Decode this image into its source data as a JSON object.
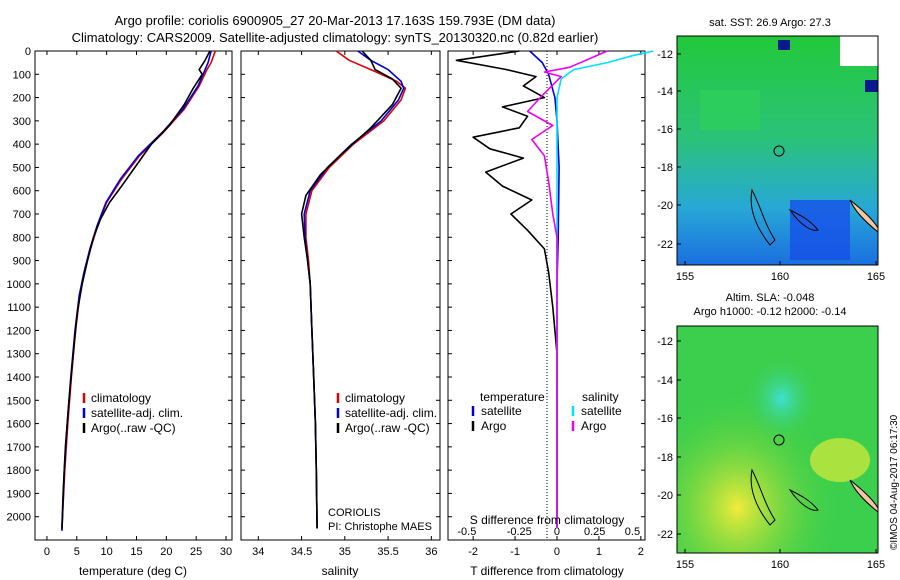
{
  "header": {
    "line1": "Argo profile: coriolis 6900905_27 20-Mar-2013 17.163S 159.793E (DM data)",
    "line2": "Climatology: CARS2009. Satellite-adjusted climatology: synTS_20130320.nc (0.82d earlier)"
  },
  "side_stamp": "©IMOS 04-Aug-2017 06:17:30",
  "panels": {
    "temperature": {
      "xlabel": "temperature (deg C)",
      "legend": [
        "climatology",
        "satellite-adj. clim.",
        "Argo(..raw -QC)"
      ]
    },
    "salinity": {
      "xlabel": "salinity",
      "legend": [
        "climatology",
        "satellite-adj. clim.",
        "Argo(..raw -QC)"
      ],
      "note1": "CORIOLIS",
      "note2": "PI: Christophe MAES"
    },
    "difference": {
      "top_label": "S difference from climatology",
      "xlabel": "T difference from climatology",
      "legend_temp_title": "temperature",
      "legend_sal_title": "salinity",
      "legend_items": [
        "satellite",
        "Argo",
        "satellite",
        "Argo"
      ]
    }
  },
  "maps": {
    "sst_title": "sat. SST: 26.9 Argo: 27.3",
    "sla_title1": "Altim. SLA: -0.048",
    "sla_title2": "Argo h1000: -0.12 h2000: -0.14",
    "x_ticks": [
      "155",
      "160",
      "165"
    ],
    "y_ticks": [
      "-12",
      "-14",
      "-16",
      "-18",
      "-20",
      "-22"
    ]
  },
  "colors": {
    "climatology": "#e00000",
    "satellite": "#0000dd",
    "argo": "#000000",
    "sal_sat": "#00e0ff",
    "sal_argo": "#ee00ee"
  },
  "chart_data": [
    {
      "type": "line",
      "xlabel": "temperature (deg C)",
      "ylabel": "",
      "xlim": [
        -2,
        31
      ],
      "ylim": [
        2100,
        0
      ],
      "x_ticks": [
        0,
        5,
        10,
        15,
        20,
        25,
        30
      ],
      "y_ticks": [
        0,
        100,
        200,
        300,
        400,
        500,
        600,
        700,
        800,
        900,
        1000,
        1100,
        1200,
        1300,
        1400,
        1500,
        1600,
        1700,
        1800,
        1900,
        2000
      ],
      "series": [
        {
          "name": "climatology",
          "color": "#e00000",
          "points": [
            [
              28.2,
              0
            ],
            [
              27.5,
              50
            ],
            [
              26.8,
              80
            ],
            [
              25.5,
              150
            ],
            [
              23,
              250
            ],
            [
              19.5,
              350
            ],
            [
              15.5,
              450
            ],
            [
              12.5,
              550
            ],
            [
              10,
              650
            ],
            [
              8.5,
              750
            ],
            [
              7.3,
              850
            ],
            [
              6.3,
              950
            ],
            [
              5.5,
              1050
            ],
            [
              4.8,
              1200
            ],
            [
              4.1,
              1400
            ],
            [
              3.5,
              1600
            ],
            [
              3,
              1800
            ],
            [
              2.6,
              2000
            ],
            [
              2.5,
              2060
            ]
          ]
        },
        {
          "name": "satellite-adj. clim.",
          "color": "#0000dd",
          "points": [
            [
              27.5,
              0
            ],
            [
              27,
              50
            ],
            [
              26.5,
              80
            ],
            [
              25.3,
              150
            ],
            [
              22.8,
              250
            ],
            [
              19.3,
              350
            ],
            [
              15.3,
              450
            ],
            [
              12.3,
              550
            ],
            [
              9.9,
              650
            ],
            [
              8.4,
              750
            ],
            [
              7.2,
              850
            ],
            [
              6.2,
              950
            ],
            [
              5.4,
              1050
            ],
            [
              4.7,
              1200
            ],
            [
              4,
              1400
            ],
            [
              3.4,
              1600
            ],
            [
              2.9,
              1800
            ],
            [
              2.6,
              2000
            ],
            [
              2.5,
              2060
            ]
          ]
        },
        {
          "name": "Argo(..raw -QC)",
          "color": "#000000",
          "points": [
            [
              27.3,
              0
            ],
            [
              26.5,
              40
            ],
            [
              25.5,
              80
            ],
            [
              26,
              100
            ],
            [
              24.5,
              160
            ],
            [
              23,
              230
            ],
            [
              20.5,
              320
            ],
            [
              17.5,
              400
            ],
            [
              15,
              490
            ],
            [
              12.5,
              580
            ],
            [
              10.5,
              650
            ],
            [
              9,
              720
            ],
            [
              7.8,
              800
            ],
            [
              6.8,
              900
            ],
            [
              5.9,
              1000
            ],
            [
              5.1,
              1120
            ],
            [
              4.4,
              1300
            ],
            [
              3.7,
              1500
            ],
            [
              3.1,
              1700
            ],
            [
              2.7,
              1900
            ],
            [
              2.5,
              2050
            ]
          ]
        }
      ]
    },
    {
      "type": "line",
      "xlabel": "salinity",
      "ylabel": "",
      "xlim": [
        33.8,
        36.1
      ],
      "ylim": [
        2100,
        0
      ],
      "x_ticks": [
        34,
        34.5,
        35,
        35.5,
        36
      ],
      "y_ticks": [
        0,
        100,
        200,
        300,
        400,
        500,
        600,
        700,
        800,
        900,
        1000,
        1100,
        1200,
        1300,
        1400,
        1500,
        1600,
        1700,
        1800,
        1900,
        2000
      ],
      "series": [
        {
          "name": "climatology",
          "color": "#e00000",
          "points": [
            [
              34.9,
              0
            ],
            [
              35.05,
              40
            ],
            [
              35.3,
              80
            ],
            [
              35.6,
              130
            ],
            [
              35.7,
              160
            ],
            [
              35.65,
              210
            ],
            [
              35.45,
              300
            ],
            [
              35.1,
              400
            ],
            [
              34.82,
              500
            ],
            [
              34.62,
              600
            ],
            [
              34.55,
              700
            ],
            [
              34.55,
              800
            ],
            [
              34.58,
              900
            ],
            [
              34.6,
              1000
            ],
            [
              34.62,
              1200
            ],
            [
              34.64,
              1400
            ],
            [
              34.66,
              1600
            ],
            [
              34.67,
              1800
            ],
            [
              34.68,
              2050
            ]
          ]
        },
        {
          "name": "satellite-adj. clim.",
          "color": "#0000dd",
          "points": [
            [
              35.15,
              0
            ],
            [
              35.3,
              40
            ],
            [
              35.5,
              80
            ],
            [
              35.65,
              130
            ],
            [
              35.68,
              160
            ],
            [
              35.62,
              210
            ],
            [
              35.42,
              300
            ],
            [
              35.08,
              400
            ],
            [
              34.8,
              500
            ],
            [
              34.6,
              600
            ],
            [
              34.53,
              700
            ],
            [
              34.54,
              800
            ],
            [
              34.57,
              900
            ],
            [
              34.6,
              1000
            ],
            [
              34.62,
              1200
            ],
            [
              34.64,
              1400
            ],
            [
              34.66,
              1600
            ],
            [
              34.67,
              1800
            ],
            [
              34.68,
              2050
            ]
          ]
        },
        {
          "name": "Argo(..raw -QC)",
          "color": "#000000",
          "points": [
            [
              35.2,
              0
            ],
            [
              35.3,
              40
            ],
            [
              35.35,
              80
            ],
            [
              35.55,
              120
            ],
            [
              35.65,
              160
            ],
            [
              35.55,
              230
            ],
            [
              35.3,
              330
            ],
            [
              35,
              430
            ],
            [
              34.72,
              530
            ],
            [
              34.55,
              620
            ],
            [
              34.5,
              700
            ],
            [
              34.53,
              800
            ],
            [
              34.57,
              900
            ],
            [
              34.6,
              1000
            ],
            [
              34.62,
              1200
            ],
            [
              34.64,
              1400
            ],
            [
              34.66,
              1600
            ],
            [
              34.67,
              1800
            ],
            [
              34.68,
              2050
            ]
          ]
        }
      ]
    },
    {
      "type": "line",
      "xlabel": "T difference from climatology",
      "ylabel": "",
      "xlim": [
        -2.6,
        2.1
      ],
      "ylim": [
        2100,
        0
      ],
      "x_ticks": [
        -2,
        -1,
        0,
        1,
        2
      ],
      "x2_label": "S difference from climatology",
      "x2_ticks": [
        "-0.5",
        "-0.25",
        "0",
        "0.25",
        "0.5"
      ],
      "y_ticks": [
        0,
        100,
        200,
        300,
        400,
        500,
        600,
        700,
        800,
        900,
        1000,
        1100,
        1200,
        1300,
        1400,
        1500,
        1600,
        1700,
        1800,
        1900,
        2000
      ],
      "series": [
        {
          "name": "satellite",
          "color": "#0000dd",
          "points": [
            [
              -0.65,
              0
            ],
            [
              -0.35,
              50
            ],
            [
              -0.2,
              100
            ],
            [
              -0.05,
              200
            ],
            [
              0,
              300
            ],
            [
              0.05,
              500
            ],
            [
              0.03,
              800
            ],
            [
              0,
              1000
            ],
            [
              0,
              2050
            ]
          ]
        },
        {
          "name": "Argo",
          "color": "#000000",
          "points": [
            [
              -0.9,
              0
            ],
            [
              -2.4,
              40
            ],
            [
              -1.2,
              80
            ],
            [
              -0.5,
              110
            ],
            [
              -0.8,
              150
            ],
            [
              -0.3,
              200
            ],
            [
              -1.3,
              240
            ],
            [
              -0.7,
              280
            ],
            [
              -0.9,
              330
            ],
            [
              -2,
              370
            ],
            [
              -1.6,
              420
            ],
            [
              -0.8,
              460
            ],
            [
              -1.7,
              520
            ],
            [
              -1.3,
              580
            ],
            [
              -0.6,
              640
            ],
            [
              -1.1,
              700
            ],
            [
              -0.7,
              770
            ],
            [
              -0.3,
              850
            ],
            [
              -0.2,
              950
            ],
            [
              -0.1,
              1100
            ],
            [
              0,
              1300
            ],
            [
              0,
              2050
            ]
          ]
        },
        {
          "name": "satellite",
          "color": "#00e0ff",
          "points": [
            [
              2.3,
              0
            ],
            [
              1.8,
              20
            ],
            [
              1.2,
              50
            ],
            [
              0.4,
              80
            ],
            [
              0.1,
              120
            ],
            [
              0,
              200
            ],
            [
              0,
              300
            ],
            [
              0,
              1000
            ],
            [
              0,
              2050
            ]
          ]
        },
        {
          "name": "Argo",
          "color": "#ee00ee",
          "points": [
            [
              1.2,
              0
            ],
            [
              0.3,
              70
            ],
            [
              -0.3,
              90
            ],
            [
              0.1,
              110
            ],
            [
              -0.4,
              200
            ],
            [
              -0.7,
              260
            ],
            [
              -0.1,
              320
            ],
            [
              -0.6,
              380
            ],
            [
              -0.3,
              450
            ],
            [
              -0.2,
              560
            ],
            [
              -0.1,
              700
            ],
            [
              0,
              800
            ],
            [
              0,
              1000
            ],
            [
              0,
              2050
            ]
          ]
        }
      ]
    }
  ]
}
